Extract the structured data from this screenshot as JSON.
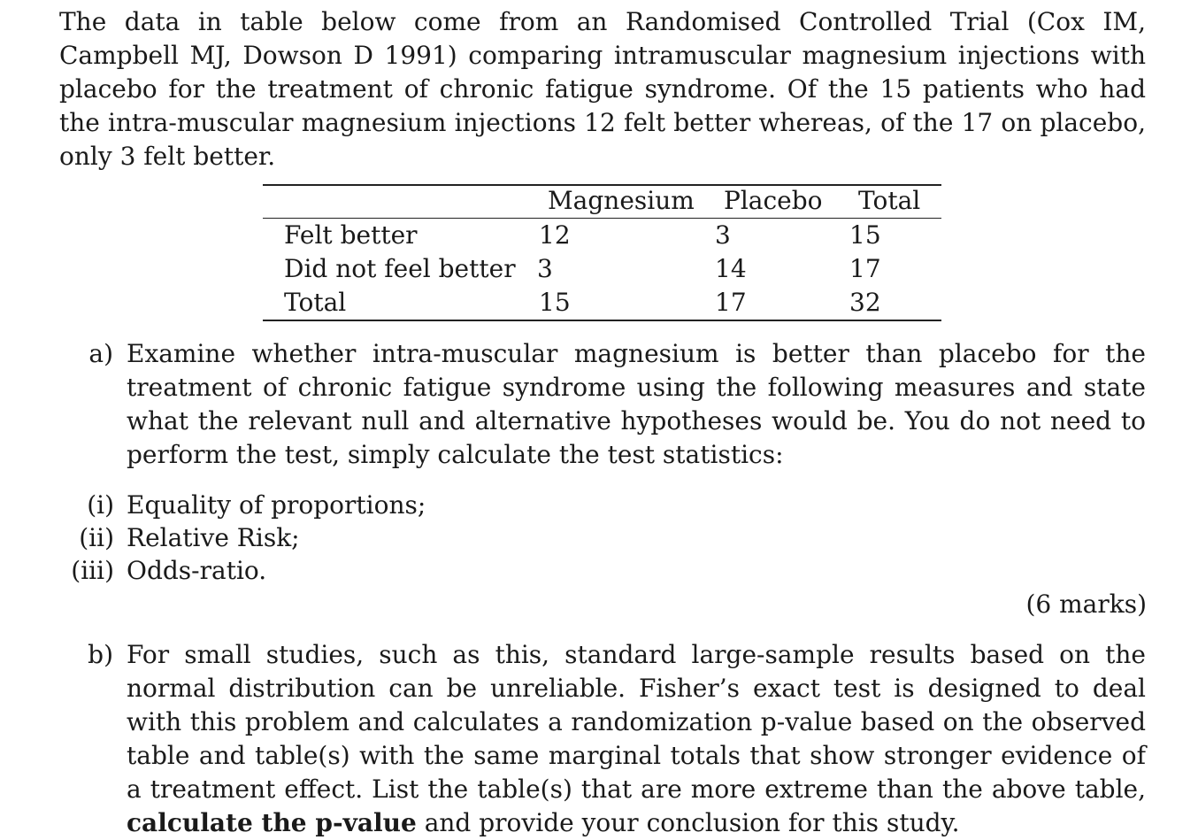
{
  "intro": "The data in table below come from an Randomised Controlled Trial (Cox IM, Campbell MJ, Dowson D 1991) comparing intramuscular magnesium injections with placebo for the treatment of chronic fatigue syndrome.  Of the 15 patients who had the intra-muscular magnesium injections 12 felt better whereas, of the 17 on placebo, only 3 felt better.",
  "table": {
    "headers": [
      "Magnesium",
      "Placebo",
      "Total"
    ],
    "rows": [
      {
        "label": "Felt better",
        "magnesium": "12",
        "placebo": "3",
        "total": "15"
      },
      {
        "label": "Did not feel better",
        "magnesium": "3",
        "placebo": "14",
        "total": "17"
      },
      {
        "label": "Total",
        "magnesium": "15",
        "placebo": "17",
        "total": "32"
      }
    ]
  },
  "part_a": {
    "label": "a)",
    "text": "Examine whether intra-muscular magnesium is better than placebo for the treatment of chronic fatigue syndrome using the following measures and state what the relevant null and alternative hypotheses would be. You do not need to perform the test, simply calculate the test statistics:",
    "items": [
      {
        "label": "(i)",
        "text": "Equality of proportions;"
      },
      {
        "label": "(ii)",
        "text": "Relative Risk;"
      },
      {
        "label": "(iii)",
        "text": "Odds-ratio."
      }
    ],
    "marks": "(6 marks)"
  },
  "part_b": {
    "label": "b)",
    "text_before": "For small studies, such as this, standard large-sample results based on the normal distribution can be unreliable. Fisher’s exact test is designed to deal with this problem and calculates a randomization p-value based on the observed table and table(s) with the same marginal totals that show stronger evidence of a treatment effect. List the table(s) that are more extreme than the above table, ",
    "bold": "calculate the p-value",
    "text_after": " and provide your conclusion for this study."
  }
}
